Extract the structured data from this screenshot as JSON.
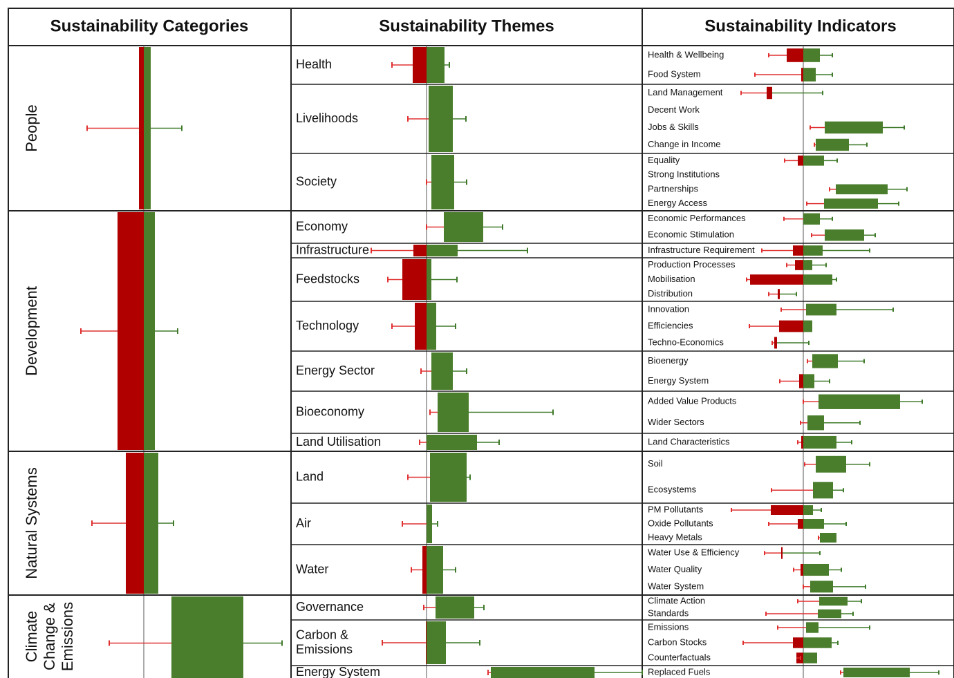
{
  "headers": [
    "Sustainability Categories",
    "Sustainability Themes",
    "Sustainability Indicators"
  ],
  "categories": [
    {
      "label": [
        "People"
      ],
      "red": [
        -7,
        0
      ],
      "green": [
        0,
        10
      ],
      "red_err": -82,
      "green_err": 55,
      "themes": [
        {
          "label": [
            "Health"
          ],
          "red": [
            -20,
            0
          ],
          "green": [
            0,
            26
          ],
          "red_err": -50,
          "green_err": 33,
          "indicators": [
            {
              "label": "Health & Wellbeing",
              "red": [
                -24,
                0
              ],
              "green": [
                0,
                24
              ],
              "red_err": -50,
              "green_err": 42
            },
            {
              "label": "Food System",
              "red": [
                -3,
                0
              ],
              "green": [
                0,
                18
              ],
              "red_err": -70,
              "green_err": 42
            }
          ]
        },
        {
          "label": [
            "Livelihoods"
          ],
          "red": null,
          "green": [
            3,
            38
          ],
          "red_err": -27,
          "green_err": 57,
          "indicators": [
            {
              "label": "Land Management",
              "red": [
                -53,
                -45
              ],
              "green": null,
              "red_err": -90,
              "green_err": 28
            },
            {
              "label": "Decent Work",
              "red": null,
              "green": null,
              "red_err": null,
              "green_err": null
            },
            {
              "label": "Jobs & Skills",
              "red": null,
              "green": [
                31,
                115
              ],
              "red_err": 10,
              "green_err": 146
            },
            {
              "label": "Change in Income",
              "red": null,
              "green": [
                18,
                66
              ],
              "red_err": 16,
              "green_err": 92
            }
          ]
        },
        {
          "label": [
            "Society"
          ],
          "red": null,
          "green": [
            7,
            40
          ],
          "red_err": 0,
          "green_err": 58,
          "indicators": [
            {
              "label": "Equality",
              "red": [
                -8,
                0
              ],
              "green": [
                0,
                30
              ],
              "red_err": -27,
              "green_err": 49
            },
            {
              "label": "Strong Institutions",
              "red": null,
              "green": null,
              "red_err": null,
              "green_err": null
            },
            {
              "label": "Partnerships",
              "red": null,
              "green": [
                47,
                122
              ],
              "red_err": 38,
              "green_err": 150
            },
            {
              "label": "Energy Access",
              "red": null,
              "green": [
                30,
                108
              ],
              "red_err": 5,
              "green_err": 138
            }
          ]
        }
      ]
    },
    {
      "label": [
        "Development"
      ],
      "red": [
        -38,
        0
      ],
      "green": [
        0,
        16
      ],
      "red_err": -91,
      "green_err": 49,
      "themes": [
        {
          "label": [
            "Economy"
          ],
          "red": null,
          "green": [
            25,
            82
          ],
          "red_err": 0,
          "green_err": 110,
          "indicators": [
            {
              "label": "Economic Performances",
              "red": null,
              "green": [
                0,
                24
              ],
              "red_err": -28,
              "green_err": 42
            },
            {
              "label": "Economic Stimulation",
              "red": null,
              "green": [
                31,
                88
              ],
              "red_err": 12,
              "green_err": 104
            }
          ]
        },
        {
          "label": [
            "Infrastructure"
          ],
          "red": [
            -19,
            0
          ],
          "green": [
            0,
            45
          ],
          "red_err": -80,
          "green_err": 146,
          "indicators": [
            {
              "label": "Infrastructure Requirement",
              "red": [
                -15,
                0
              ],
              "green": [
                0,
                28
              ],
              "red_err": -60,
              "green_err": 96
            }
          ]
        },
        {
          "label": [
            "Feedstocks"
          ],
          "red": [
            -35,
            0
          ],
          "green": [
            0,
            7
          ],
          "red_err": -56,
          "green_err": 44,
          "indicators": [
            {
              "label": "Production Processes",
              "red": [
                -12,
                0
              ],
              "green": [
                0,
                13
              ],
              "red_err": -24,
              "green_err": 33
            },
            {
              "label": "Mobilisation",
              "red": [
                -77,
                0
              ],
              "green": [
                0,
                42
              ],
              "red_err": -82,
              "green_err": 48
            },
            {
              "label": "Distribution",
              "red": [
                -37,
                -34
              ],
              "green": null,
              "red_err": -50,
              "green_err": -10
            }
          ]
        },
        {
          "label": [
            "Technology"
          ],
          "red": [
            -17,
            0
          ],
          "green": [
            0,
            14
          ],
          "red_err": -50,
          "green_err": 42,
          "indicators": [
            {
              "label": "Innovation",
              "red": null,
              "green": [
                4,
                48
              ],
              "red_err": -32,
              "green_err": 130
            },
            {
              "label": "Efficiencies",
              "red": [
                -35,
                0
              ],
              "green": [
                0,
                13
              ],
              "red_err": -78,
              "green_err": null
            },
            {
              "label": "Techno-Economics",
              "red": [
                -42,
                -38
              ],
              "green": null,
              "red_err": -45,
              "green_err": 8
            }
          ]
        },
        {
          "label": [
            "Energy Sector"
          ],
          "red": null,
          "green": [
            7,
            38
          ],
          "red_err": -8,
          "green_err": 58,
          "indicators": [
            {
              "label": "Bioenergy",
              "red": null,
              "green": [
                13,
                50
              ],
              "red_err": 6,
              "green_err": 88
            },
            {
              "label": "Energy System",
              "red": [
                -6,
                0
              ],
              "green": [
                0,
                16
              ],
              "red_err": -34,
              "green_err": 38
            }
          ]
        },
        {
          "label": [
            "Bioeconomy"
          ],
          "red": null,
          "green": [
            16,
            61
          ],
          "red_err": 5,
          "green_err": 183,
          "indicators": [
            {
              "label": "Added Value Products",
              "red": null,
              "green": [
                22,
                140
              ],
              "red_err": 0,
              "green_err": 172
            },
            {
              "label": "Wider Sectors",
              "red": null,
              "green": [
                6,
                30
              ],
              "red_err": -4,
              "green_err": 82
            }
          ]
        },
        {
          "label": [
            "Land Utilisation"
          ],
          "red": null,
          "green": [
            0,
            73
          ],
          "red_err": -10,
          "green_err": 105,
          "indicators": [
            {
              "label": "Land Characteristics",
              "red": [
                -3,
                0
              ],
              "green": [
                0,
                48
              ],
              "red_err": -8,
              "green_err": 70
            }
          ]
        }
      ]
    },
    {
      "label": [
        "Natural Systems"
      ],
      "red": [
        -26,
        0
      ],
      "green": [
        0,
        21
      ],
      "red_err": -75,
      "green_err": 43,
      "themes": [
        {
          "label": [
            "Land"
          ],
          "red": null,
          "green": [
            5,
            58
          ],
          "red_err": -27,
          "green_err": 63,
          "indicators": [
            {
              "label": "Soil",
              "red": null,
              "green": [
                18,
                62
              ],
              "red_err": 2,
              "green_err": 96
            },
            {
              "label": "Ecosystems",
              "red": null,
              "green": [
                14,
                43
              ],
              "red_err": -46,
              "green_err": 58
            }
          ]
        },
        {
          "label": [
            "Air"
          ],
          "red": null,
          "green": [
            0,
            8
          ],
          "red_err": -35,
          "green_err": 16,
          "indicators": [
            {
              "label": "PM Pollutants",
              "red": [
                -47,
                0
              ],
              "green": [
                0,
                14
              ],
              "red_err": -104,
              "green_err": 26
            },
            {
              "label": "Oxide Pollutants",
              "red": [
                -8,
                0
              ],
              "green": [
                0,
                30
              ],
              "red_err": -50,
              "green_err": 62
            },
            {
              "label": "Heavy Metals",
              "red": null,
              "green": [
                24,
                48
              ],
              "red_err": 22,
              "green_err": null
            }
          ]
        },
        {
          "label": [
            "Water"
          ],
          "red": [
            -6,
            0
          ],
          "green": [
            0,
            24
          ],
          "red_err": -22,
          "green_err": 42,
          "indicators": [
            {
              "label": "Water Use & Efficiency",
              "red": [
                -32,
                -30
              ],
              "green": null,
              "red_err": -56,
              "green_err": 24
            },
            {
              "label": "Water Quality",
              "red": [
                -4,
                0
              ],
              "green": [
                0,
                37
              ],
              "red_err": -14,
              "green_err": 55
            },
            {
              "label": "Water System",
              "red": null,
              "green": [
                10,
                43
              ],
              "red_err": 0,
              "green_err": 90
            }
          ]
        }
      ]
    },
    {
      "label": [
        "Climate",
        "Change &",
        "Emissions"
      ],
      "red": null,
      "green": [
        40,
        144
      ],
      "red_err": -50,
      "green_err": 200,
      "themes": [
        {
          "label": [
            "Governance"
          ],
          "red": null,
          "green": [
            13,
            69
          ],
          "red_err": -4,
          "green_err": 83,
          "indicators": [
            {
              "label": "Climate Action",
              "red": null,
              "green": [
                23,
                64
              ],
              "red_err": -8,
              "green_err": 84
            },
            {
              "label": "Standards",
              "red": null,
              "green": [
                21,
                55
              ],
              "red_err": -54,
              "green_err": 72
            }
          ]
        },
        {
          "label": [
            "Carbon &",
            "Emissions"
          ],
          "red": [
            -1,
            0
          ],
          "green": [
            0,
            28
          ],
          "red_err": -64,
          "green_err": 77,
          "indicators": [
            {
              "label": "Emissions",
              "red": null,
              "green": [
                4,
                22
              ],
              "red_err": -37,
              "green_err": 96
            },
            {
              "label": "Carbon Stocks",
              "red": [
                -15,
                0
              ],
              "green": [
                0,
                41
              ],
              "red_err": -87,
              "green_err": 50
            },
            {
              "label": "Counterfactuals",
              "red": [
                -10,
                0
              ],
              "green": [
                0,
                20
              ],
              "red_err": -4,
              "green_err": null
            }
          ]
        },
        {
          "label": [
            "Energy System"
          ],
          "red": null,
          "green": [
            93,
            243
          ],
          "red_err": 89,
          "green_err": 312,
          "indicators": [
            {
              "label": "Replaced Fuels",
              "red": null,
              "green": [
                58,
                154
              ],
              "red_err": 54,
              "green_err": 196
            }
          ]
        }
      ]
    }
  ]
}
